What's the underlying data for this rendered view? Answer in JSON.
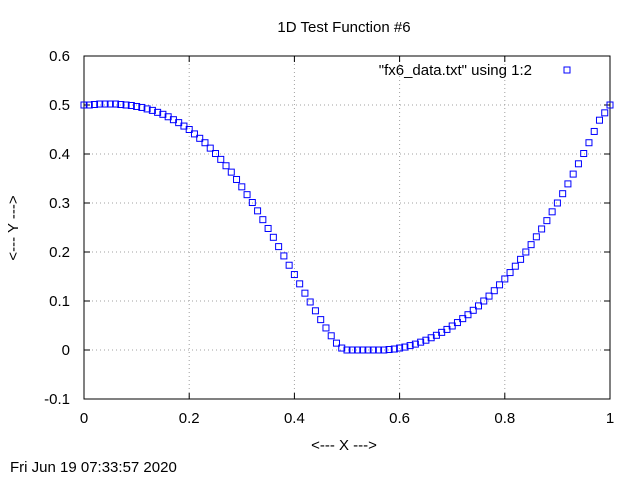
{
  "chart_data": {
    "type": "scatter",
    "title": "1D Test Function #6",
    "xlabel": "<--- X --->",
    "ylabel": "<--- Y --->",
    "xlim": [
      0,
      1
    ],
    "ylim": [
      -0.1,
      0.6
    ],
    "xticks": [
      "0",
      "0.2",
      "0.4",
      "0.6",
      "0.8",
      "1"
    ],
    "yticks": [
      "-0.1",
      "0",
      "0.1",
      "0.2",
      "0.3",
      "0.4",
      "0.5",
      "0.6"
    ],
    "grid": true,
    "legend_position": "top-right",
    "marker": "open-square",
    "color": "#0000ff",
    "series": [
      {
        "name": "\"fx6_data.txt\" using 1:2",
        "x": [
          0,
          0.01,
          0.02,
          0.03,
          0.04,
          0.05,
          0.06,
          0.07,
          0.08,
          0.09,
          0.1,
          0.11,
          0.12,
          0.13,
          0.14,
          0.15,
          0.16,
          0.17,
          0.18,
          0.19,
          0.2,
          0.21,
          0.22,
          0.23,
          0.24,
          0.25,
          0.26,
          0.27,
          0.28,
          0.29,
          0.3,
          0.31,
          0.32,
          0.33,
          0.34,
          0.35,
          0.36,
          0.37,
          0.38,
          0.39,
          0.4,
          0.41,
          0.42,
          0.43,
          0.44,
          0.45,
          0.46,
          0.47,
          0.48,
          0.49,
          0.5,
          0.51,
          0.52,
          0.53,
          0.54,
          0.55,
          0.56,
          0.57,
          0.58,
          0.59,
          0.6,
          0.61,
          0.62,
          0.63,
          0.64,
          0.65,
          0.66,
          0.67,
          0.68,
          0.69,
          0.7,
          0.71,
          0.72,
          0.73,
          0.74,
          0.75,
          0.76,
          0.77,
          0.78,
          0.79,
          0.8,
          0.81,
          0.82,
          0.83,
          0.84,
          0.85,
          0.86,
          0.87,
          0.88,
          0.89,
          0.9,
          0.91,
          0.92,
          0.93,
          0.94,
          0.95,
          0.96,
          0.97,
          0.98,
          0.99,
          1
        ],
        "y": [
          0.5,
          0.5,
          0.501,
          0.502,
          0.502,
          0.502,
          0.502,
          0.501,
          0.5,
          0.499,
          0.497,
          0.495,
          0.492,
          0.489,
          0.485,
          0.481,
          0.476,
          0.47,
          0.464,
          0.457,
          0.45,
          0.441,
          0.432,
          0.423,
          0.412,
          0.401,
          0.389,
          0.376,
          0.363,
          0.348,
          0.333,
          0.317,
          0.301,
          0.284,
          0.266,
          0.248,
          0.23,
          0.211,
          0.192,
          0.173,
          0.154,
          0.135,
          0.116,
          0.098,
          0.08,
          0.062,
          0.045,
          0.029,
          0.014,
          0.004,
          0,
          0,
          0,
          0,
          0,
          0,
          0,
          0,
          0.001,
          0.002,
          0.004,
          0.006,
          0.009,
          0.012,
          0.016,
          0.02,
          0.025,
          0.03,
          0.036,
          0.042,
          0.049,
          0.056,
          0.064,
          0.072,
          0.081,
          0.09,
          0.1,
          0.11,
          0.121,
          0.133,
          0.145,
          0.158,
          0.171,
          0.185,
          0.2,
          0.215,
          0.231,
          0.247,
          0.264,
          0.282,
          0.3,
          0.319,
          0.339,
          0.359,
          0.38,
          0.401,
          0.423,
          0.446,
          0.469,
          0.484,
          0.5
        ]
      }
    ]
  },
  "footer": {
    "timestamp": "Fri Jun 19 07:33:57 2020"
  }
}
